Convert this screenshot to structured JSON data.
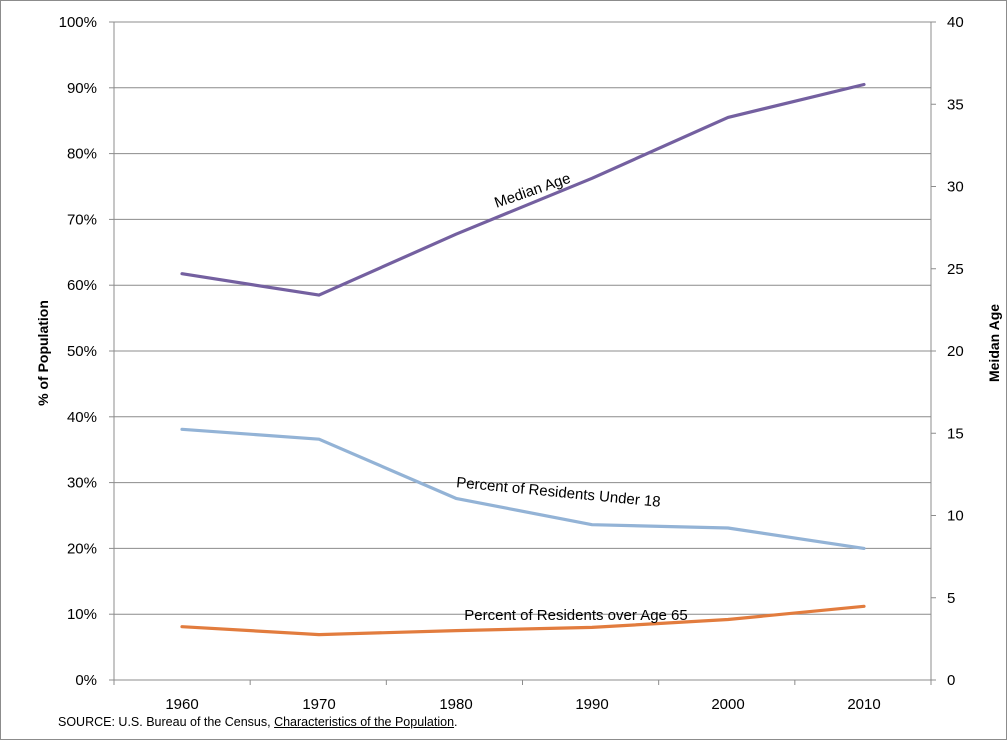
{
  "chart_data": {
    "type": "line",
    "x": [
      1960,
      1970,
      1980,
      1990,
      2000,
      2010
    ],
    "y_left": {
      "label": "% of Population",
      "range": [
        0,
        100
      ],
      "ticks": [
        0,
        10,
        20,
        30,
        40,
        50,
        60,
        70,
        80,
        90,
        100
      ],
      "tick_labels": [
        "0%",
        "10%",
        "20%",
        "30%",
        "40%",
        "50%",
        "60%",
        "70%",
        "80%",
        "90%",
        "100%"
      ]
    },
    "y_right": {
      "label": "Meidan Age",
      "range": [
        0,
        40
      ],
      "ticks": [
        0,
        5,
        10,
        15,
        20,
        25,
        30,
        35,
        40
      ],
      "tick_labels": [
        "0",
        "5",
        "10",
        "15",
        "20",
        "25",
        "30",
        "35",
        "40"
      ]
    },
    "series": [
      {
        "name": "Median Age",
        "axis": "right",
        "color": "#7460a0",
        "values": [
          24.7,
          23.4,
          27.1,
          30.5,
          34.2,
          36.2
        ]
      },
      {
        "name": "Percent of Residents Under 18",
        "axis": "left",
        "color": "#93b3d6",
        "values": [
          38.1,
          36.6,
          27.6,
          23.6,
          23.1,
          20.0
        ]
      },
      {
        "name": "Percent of Residents over Age 65",
        "axis": "left",
        "color": "#e27c3e",
        "values": [
          8.1,
          6.9,
          7.5,
          8.0,
          9.2,
          11.2
        ]
      }
    ],
    "grid": "horizontal"
  },
  "source": {
    "prefix": "SOURCE:  U.S. Bureau of the Census, ",
    "title": "Characteristics of the Population",
    "suffix": "."
  }
}
